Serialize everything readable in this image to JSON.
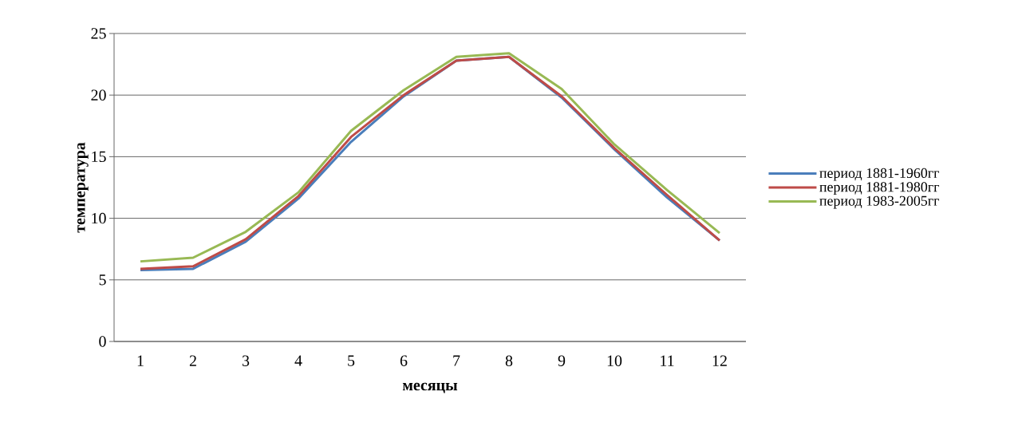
{
  "chart_data": {
    "type": "line",
    "xlabel": "месяцы",
    "ylabel": "температура",
    "categories": [
      "1",
      "2",
      "3",
      "4",
      "5",
      "6",
      "7",
      "8",
      "9",
      "10",
      "11",
      "12"
    ],
    "series": [
      {
        "name": "период 1881-1960гг",
        "color": "#4a7ebb",
        "values": [
          5.8,
          5.9,
          8.1,
          11.6,
          16.2,
          19.9,
          22.8,
          23.1,
          19.8,
          15.6,
          11.7,
          8.2
        ]
      },
      {
        "name": "период 1881-1980гг",
        "color": "#be4b48",
        "values": [
          5.9,
          6.1,
          8.3,
          11.8,
          16.6,
          20.0,
          22.8,
          23.1,
          19.9,
          15.7,
          11.9,
          8.2
        ]
      },
      {
        "name": "период 1983-2005гг",
        "color": "#98b954",
        "values": [
          6.5,
          6.8,
          8.9,
          12.1,
          17.1,
          20.4,
          23.1,
          23.4,
          20.5,
          16.0,
          12.3,
          8.8
        ]
      }
    ],
    "ylim": [
      0,
      25
    ],
    "yticks": [
      0,
      5,
      10,
      15,
      20,
      25
    ],
    "grid": "y",
    "legend": "right",
    "marker": "none",
    "line_style": "solid"
  }
}
